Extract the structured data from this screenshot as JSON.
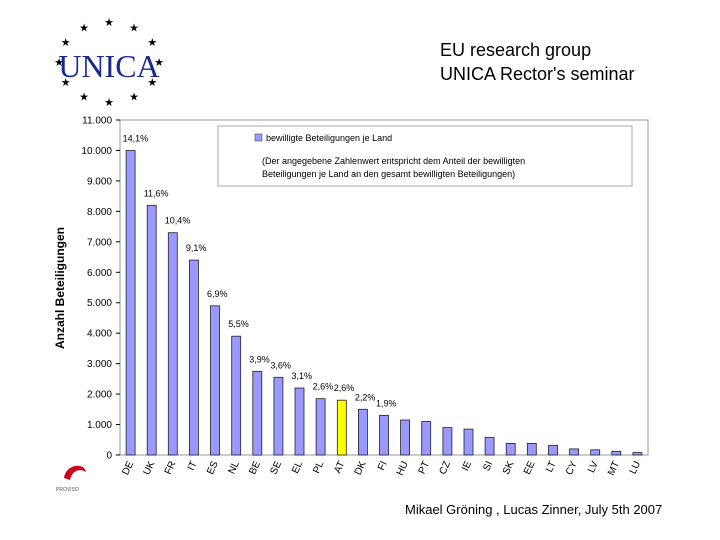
{
  "header": {
    "logo_text": "UNICA",
    "title_line1": "EU research group",
    "title_line2": "UNICA Rector's seminar"
  },
  "footer": {
    "credit": "Mikael Gröning , Lucas Zinner, July 5th 2007",
    "proviso_logo_text": "PROVISO"
  },
  "colors": {
    "bar": "#9999ff",
    "bar_highlight": "#ffff00",
    "logo_blue": "#1a2a8c"
  },
  "chart_data": {
    "type": "bar",
    "title": "",
    "xlabel": "",
    "ylabel": "Anzahl Beteiligungen",
    "ylim": [
      0,
      11000
    ],
    "yticks": [
      "0",
      "1.000",
      "2.000",
      "3.000",
      "4.000",
      "5.000",
      "6.000",
      "7.000",
      "8.000",
      "9.000",
      "10.000",
      "11.000"
    ],
    "grid": false,
    "legend_position": "top",
    "legend": {
      "series_label": "bewilligte Beteiligungen je Land",
      "note_line1": "(Der angegebene Zahlenwert entspricht dem Anteil der bewilligten",
      "note_line2": "Beteiligungen je Land an den gesamt bewilligten Beteiligungen)"
    },
    "categories": [
      "DE",
      "UK",
      "FR",
      "IT",
      "ES",
      "NL",
      "BE",
      "SE",
      "EL",
      "PL",
      "AT",
      "DK",
      "FI",
      "HU",
      "PT",
      "CZ",
      "IE",
      "SI",
      "SK",
      "EE",
      "LT",
      "CY",
      "LV",
      "MT",
      "LU"
    ],
    "series": [
      {
        "name": "bewilligte Beteiligungen je Land",
        "values": [
          10000,
          8200,
          7300,
          6400,
          4900,
          3900,
          2750,
          2550,
          2200,
          1850,
          1800,
          1500,
          1300,
          1150,
          1100,
          900,
          850,
          580,
          380,
          380,
          320,
          200,
          170,
          120,
          80
        ],
        "labels": [
          "14,1%",
          "11,6%",
          "10,4%",
          "9,1%",
          "6,9%",
          "5,5%",
          "3,9%",
          "3,6%",
          "3,1%",
          "2,6%",
          "2,6%",
          "2,2%",
          "1,9%",
          "",
          "",
          "",
          "",
          "",
          "",
          "",
          "",
          "",
          "",
          "",
          ""
        ]
      }
    ],
    "highlight_category": "AT"
  }
}
